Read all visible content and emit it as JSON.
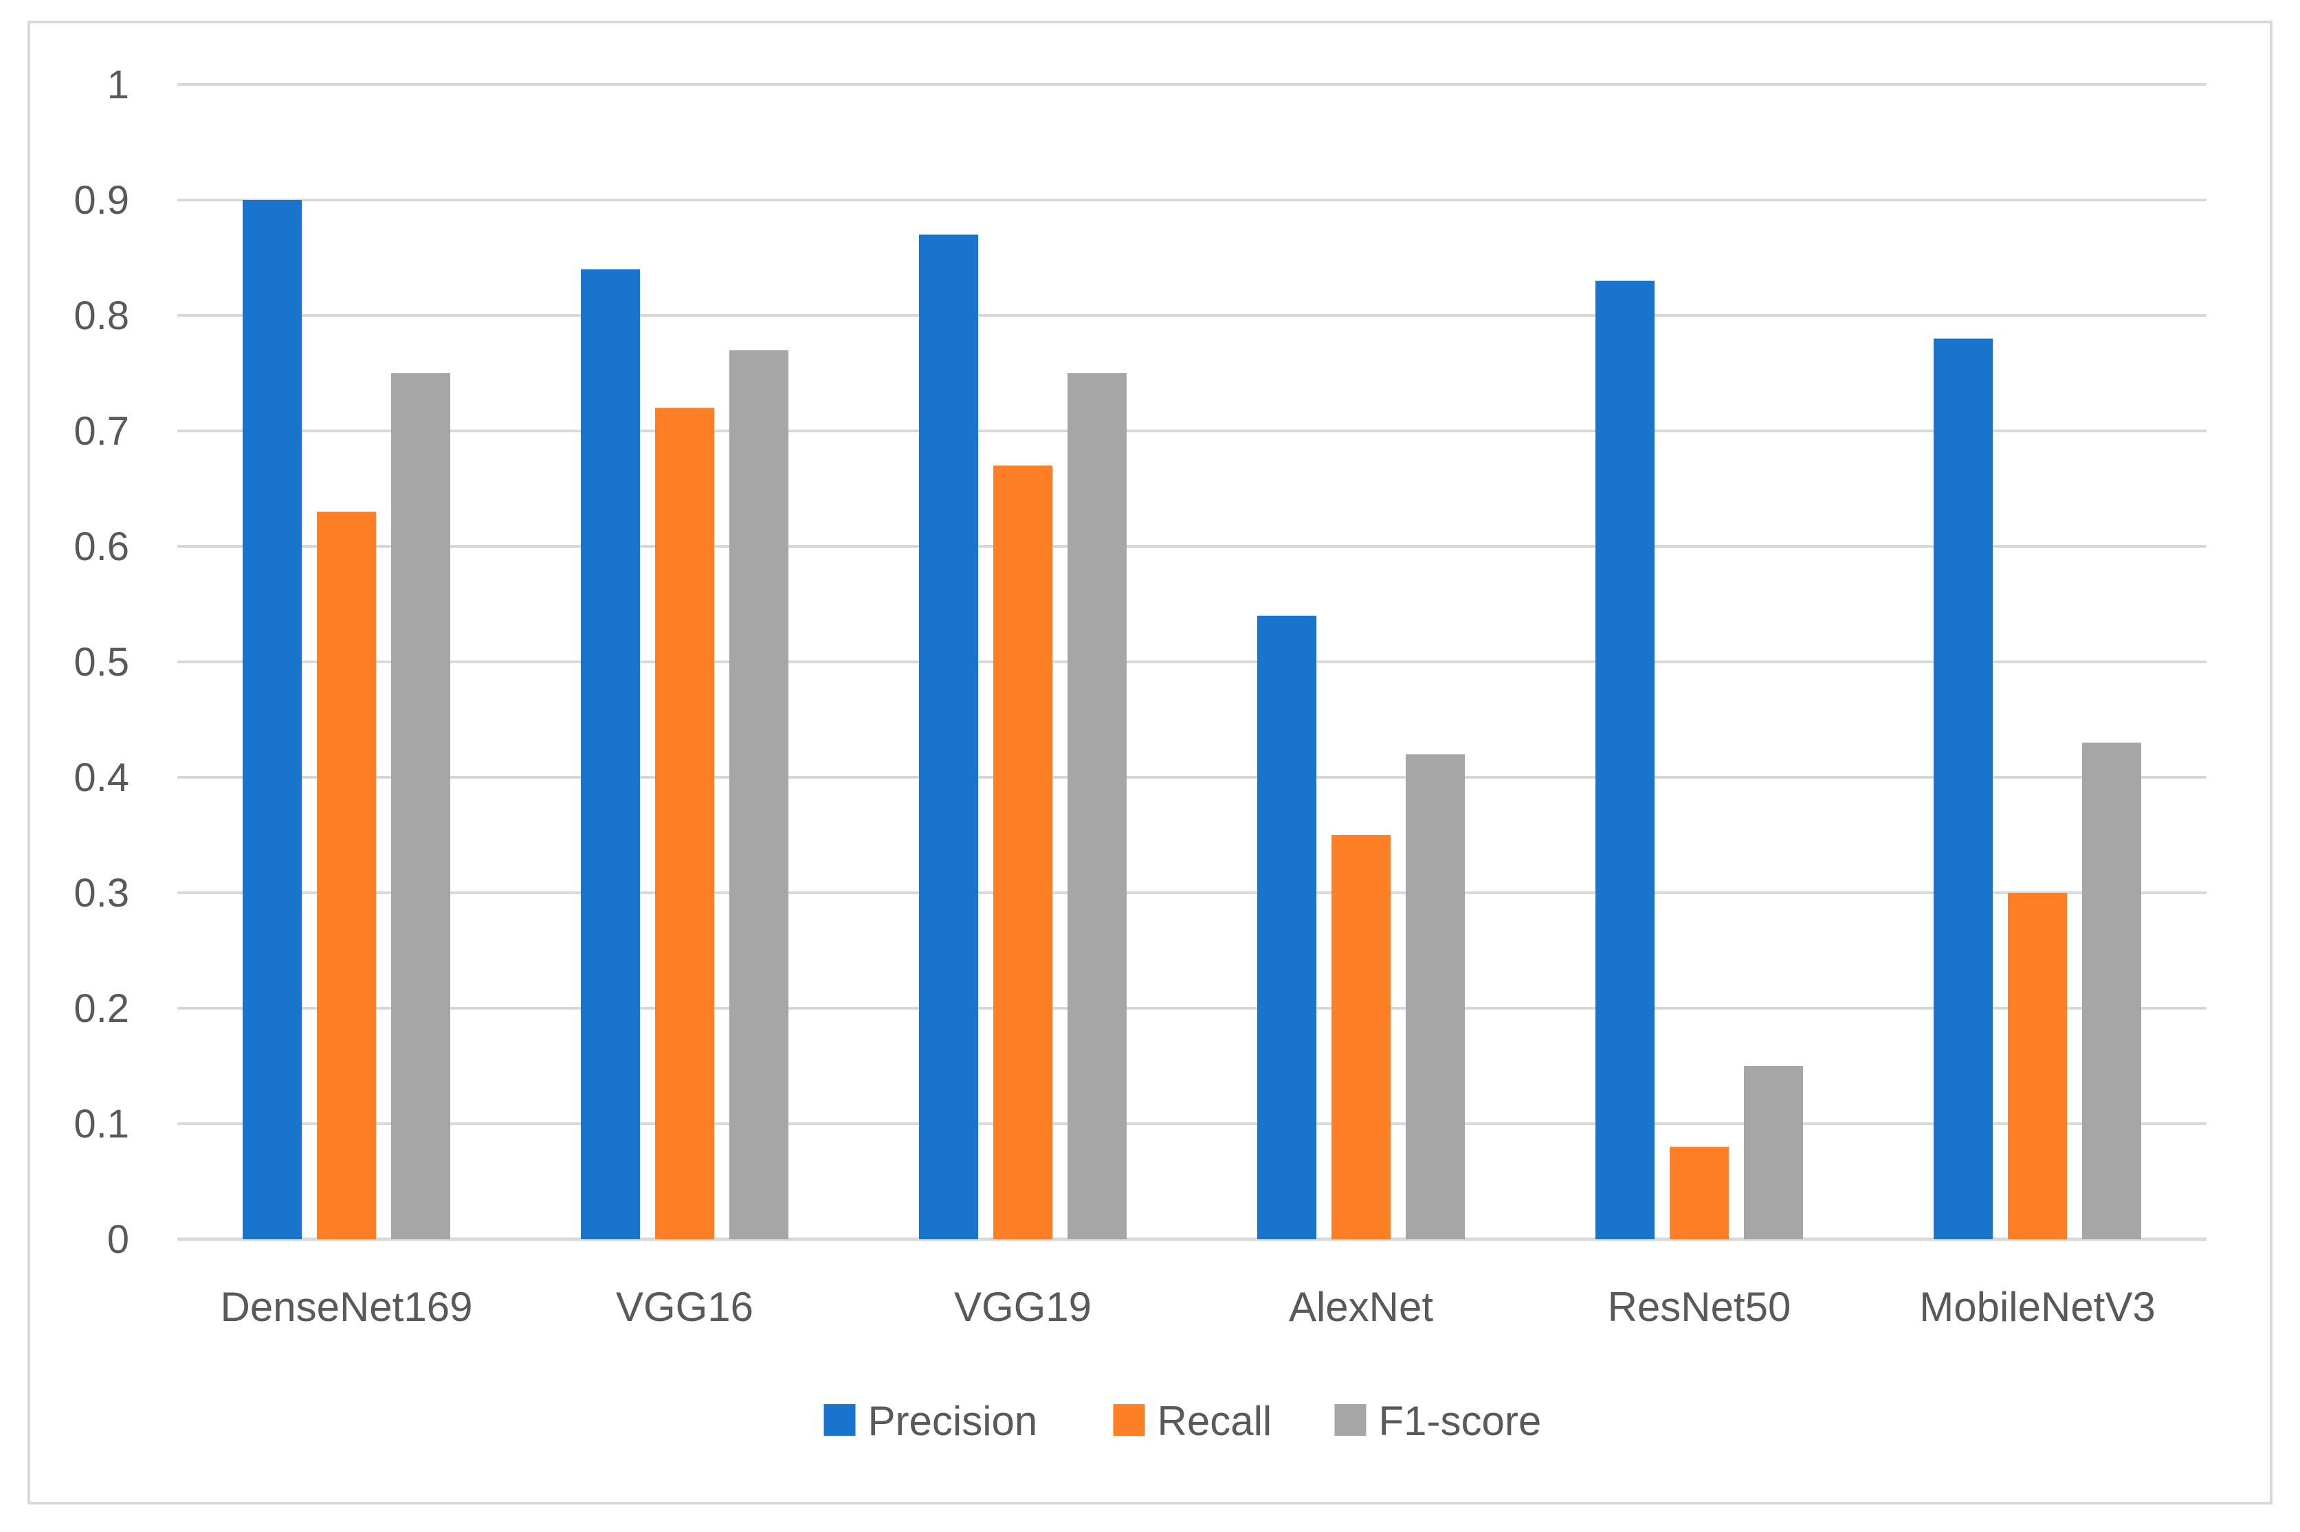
{
  "chart_data": {
    "type": "bar",
    "title": "",
    "xlabel": "",
    "ylabel": "",
    "categories": [
      "DenseNet169",
      "VGG16",
      "VGG19",
      "AlexNet",
      "ResNet50",
      "MobileNetV3"
    ],
    "series": [
      {
        "name": "Precision",
        "color": "#1874cd",
        "values": [
          0.9,
          0.84,
          0.87,
          0.54,
          0.83,
          0.78
        ]
      },
      {
        "name": "Recall",
        "color": "#ff7f27",
        "values": [
          0.63,
          0.72,
          0.67,
          0.35,
          0.08,
          0.3
        ]
      },
      {
        "name": "F1-score",
        "color": "#a6a6a6",
        "values": [
          0.75,
          0.77,
          0.75,
          0.42,
          0.15,
          0.43
        ]
      }
    ],
    "ylim": [
      0,
      1
    ],
    "yticks": [
      "0",
      "0.1",
      "0.2",
      "0.3",
      "0.4",
      "0.5",
      "0.6",
      "0.7",
      "0.8",
      "0.9",
      "1"
    ],
    "grid": true,
    "legend_position": "bottom"
  }
}
